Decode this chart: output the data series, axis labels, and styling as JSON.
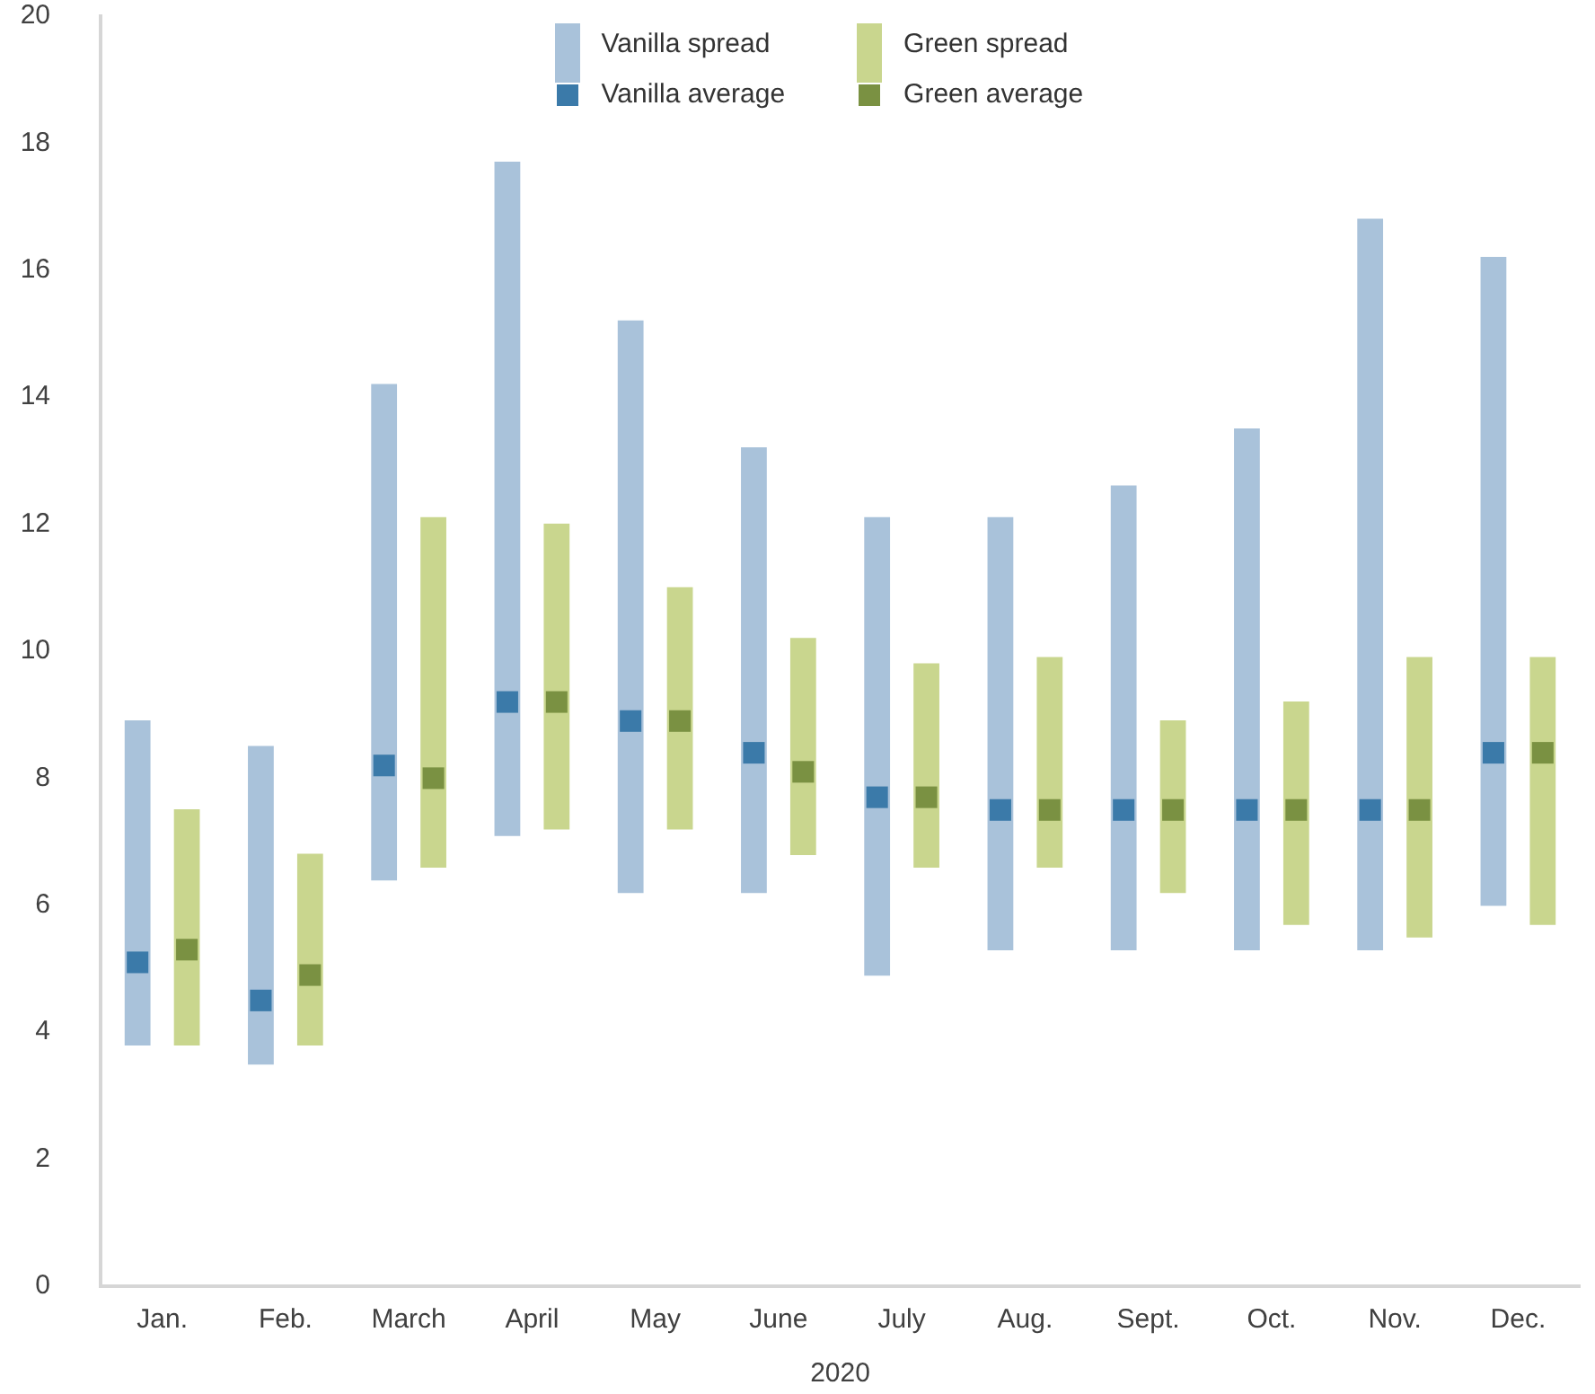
{
  "chart_data": {
    "type": "bar",
    "xlabel": "2020",
    "categories": [
      null,
      null,
      "Jan.",
      null,
      null,
      null,
      null,
      "Feb.",
      null,
      null,
      null,
      null,
      "March",
      null,
      null,
      null,
      null,
      "April",
      null,
      null,
      null,
      null,
      "May",
      null,
      null,
      null,
      null,
      "June",
      null,
      null,
      null,
      null,
      "July",
      null,
      null,
      null,
      null,
      "Aug.",
      null,
      null,
      null,
      null,
      "Sept.",
      null,
      null,
      null,
      null,
      "Oct.",
      null,
      null,
      null,
      null,
      "Nov.",
      null,
      null,
      null,
      null,
      "Dec.",
      null,
      null
    ],
    "ylim": [
      0,
      20
    ],
    "yticks": [
      0,
      2,
      4,
      6,
      8,
      10,
      12,
      14,
      16,
      18,
      20
    ],
    "grid": false,
    "legend": "top",
    "marker": "square",
    "series": [
      {
        "name": "Vanilla spread",
        "color": "#a9c2da",
        "base": [
          null,
          3.8,
          null,
          null,
          null,
          null,
          3.5,
          null,
          null,
          null,
          null,
          6.4,
          null,
          null,
          null,
          null,
          7.1,
          null,
          null,
          null,
          null,
          6.2,
          null,
          null,
          null,
          null,
          6.2,
          null,
          null,
          null,
          null,
          4.9,
          null,
          null,
          null,
          null,
          5.3,
          null,
          null,
          null,
          null,
          5.3,
          null,
          null,
          null,
          null,
          5.3,
          null,
          null,
          null,
          null,
          5.3,
          null,
          null,
          null,
          null,
          6.0,
          null,
          null,
          null
        ],
        "values": [
          null,
          5.1,
          null,
          null,
          null,
          null,
          5.0,
          null,
          null,
          null,
          null,
          7.8,
          null,
          null,
          null,
          null,
          10.6,
          null,
          null,
          null,
          null,
          9.0,
          null,
          null,
          null,
          null,
          7.0,
          null,
          null,
          null,
          null,
          7.2,
          null,
          null,
          null,
          null,
          6.8,
          null,
          null,
          null,
          null,
          7.3,
          null,
          null,
          null,
          null,
          8.2,
          null,
          null,
          null,
          null,
          11.5,
          null,
          null,
          null,
          null,
          10.2,
          null,
          null,
          null
        ]
      },
      {
        "name": "Green spread",
        "color": "#c9d68e",
        "base": [
          null,
          null,
          null,
          3.8,
          null,
          null,
          null,
          null,
          3.8,
          null,
          null,
          null,
          null,
          6.6,
          null,
          null,
          null,
          null,
          7.2,
          null,
          null,
          null,
          null,
          7.2,
          null,
          null,
          null,
          null,
          6.8,
          null,
          null,
          null,
          null,
          6.6,
          null,
          null,
          null,
          null,
          6.6,
          null,
          null,
          null,
          null,
          6.2,
          null,
          null,
          null,
          null,
          5.7,
          null,
          null,
          null,
          null,
          5.5,
          null,
          null,
          null,
          null,
          5.7,
          null
        ],
        "values": [
          null,
          null,
          null,
          3.7,
          null,
          null,
          null,
          null,
          3.0,
          null,
          null,
          null,
          null,
          5.5,
          null,
          null,
          null,
          null,
          4.8,
          null,
          null,
          null,
          null,
          3.8,
          null,
          null,
          null,
          null,
          3.4,
          null,
          null,
          null,
          null,
          3.2,
          null,
          null,
          null,
          null,
          3.3,
          null,
          null,
          null,
          null,
          2.7,
          null,
          null,
          null,
          null,
          3.5,
          null,
          null,
          null,
          null,
          4.4,
          null,
          null,
          null,
          null,
          4.2,
          null
        ]
      },
      {
        "name": "Vanilla average",
        "type": "scatter",
        "color": "#3b7aa9",
        "values": [
          null,
          5.1,
          null,
          null,
          null,
          null,
          4.5,
          null,
          null,
          null,
          null,
          8.2,
          null,
          null,
          null,
          null,
          9.2,
          null,
          null,
          null,
          null,
          8.9,
          null,
          null,
          null,
          null,
          8.4,
          null,
          null,
          null,
          null,
          7.7,
          null,
          null,
          null,
          null,
          7.5,
          null,
          null,
          null,
          null,
          7.5,
          null,
          null,
          null,
          null,
          7.5,
          null,
          null,
          null,
          null,
          7.5,
          null,
          null,
          null,
          null,
          8.4,
          null,
          null,
          null
        ]
      },
      {
        "name": "Green average",
        "type": "scatter",
        "color": "#7a9142",
        "values": [
          null,
          null,
          null,
          5.3,
          null,
          null,
          null,
          null,
          4.9,
          null,
          null,
          null,
          null,
          8.0,
          null,
          null,
          null,
          null,
          9.2,
          null,
          null,
          null,
          null,
          8.9,
          null,
          null,
          null,
          null,
          8.1,
          null,
          null,
          null,
          null,
          7.7,
          null,
          null,
          null,
          null,
          7.5,
          null,
          null,
          null,
          null,
          7.5,
          null,
          null,
          null,
          null,
          7.5,
          null,
          null,
          null,
          null,
          7.5,
          null,
          null,
          null,
          null,
          8.4,
          null
        ]
      }
    ]
  }
}
